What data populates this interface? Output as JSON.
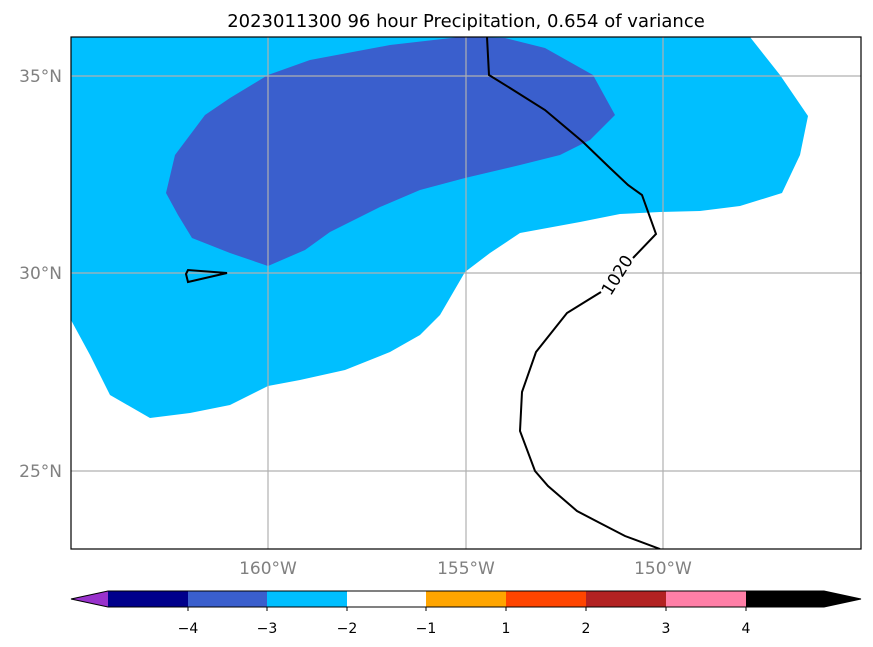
{
  "title": "2023011300 96 hour Precipitation, 0.654 of variance",
  "map": {
    "lat_ticks": [
      {
        "value": 35,
        "label": "35°N"
      },
      {
        "value": 30,
        "label": "30°N"
      },
      {
        "value": 25,
        "label": "25°N"
      }
    ],
    "lon_ticks": [
      {
        "value": -160,
        "label": "160°W"
      },
      {
        "value": -155,
        "label": "155°W"
      },
      {
        "value": -150,
        "label": "150°W"
      }
    ],
    "gridlines": true,
    "contour_label": "1020"
  },
  "colorbar": {
    "tick_labels": [
      "−4",
      "−3",
      "−2",
      "−1",
      "1",
      "2",
      "3",
      "4"
    ],
    "colors": [
      "#9932cc",
      "#00008b",
      "#3a5fcd",
      "#00bfff",
      "#ffffff",
      "#ffa500",
      "#ff4500",
      "#b22222",
      "#ff7fa7"
    ],
    "extend": "both"
  }
}
